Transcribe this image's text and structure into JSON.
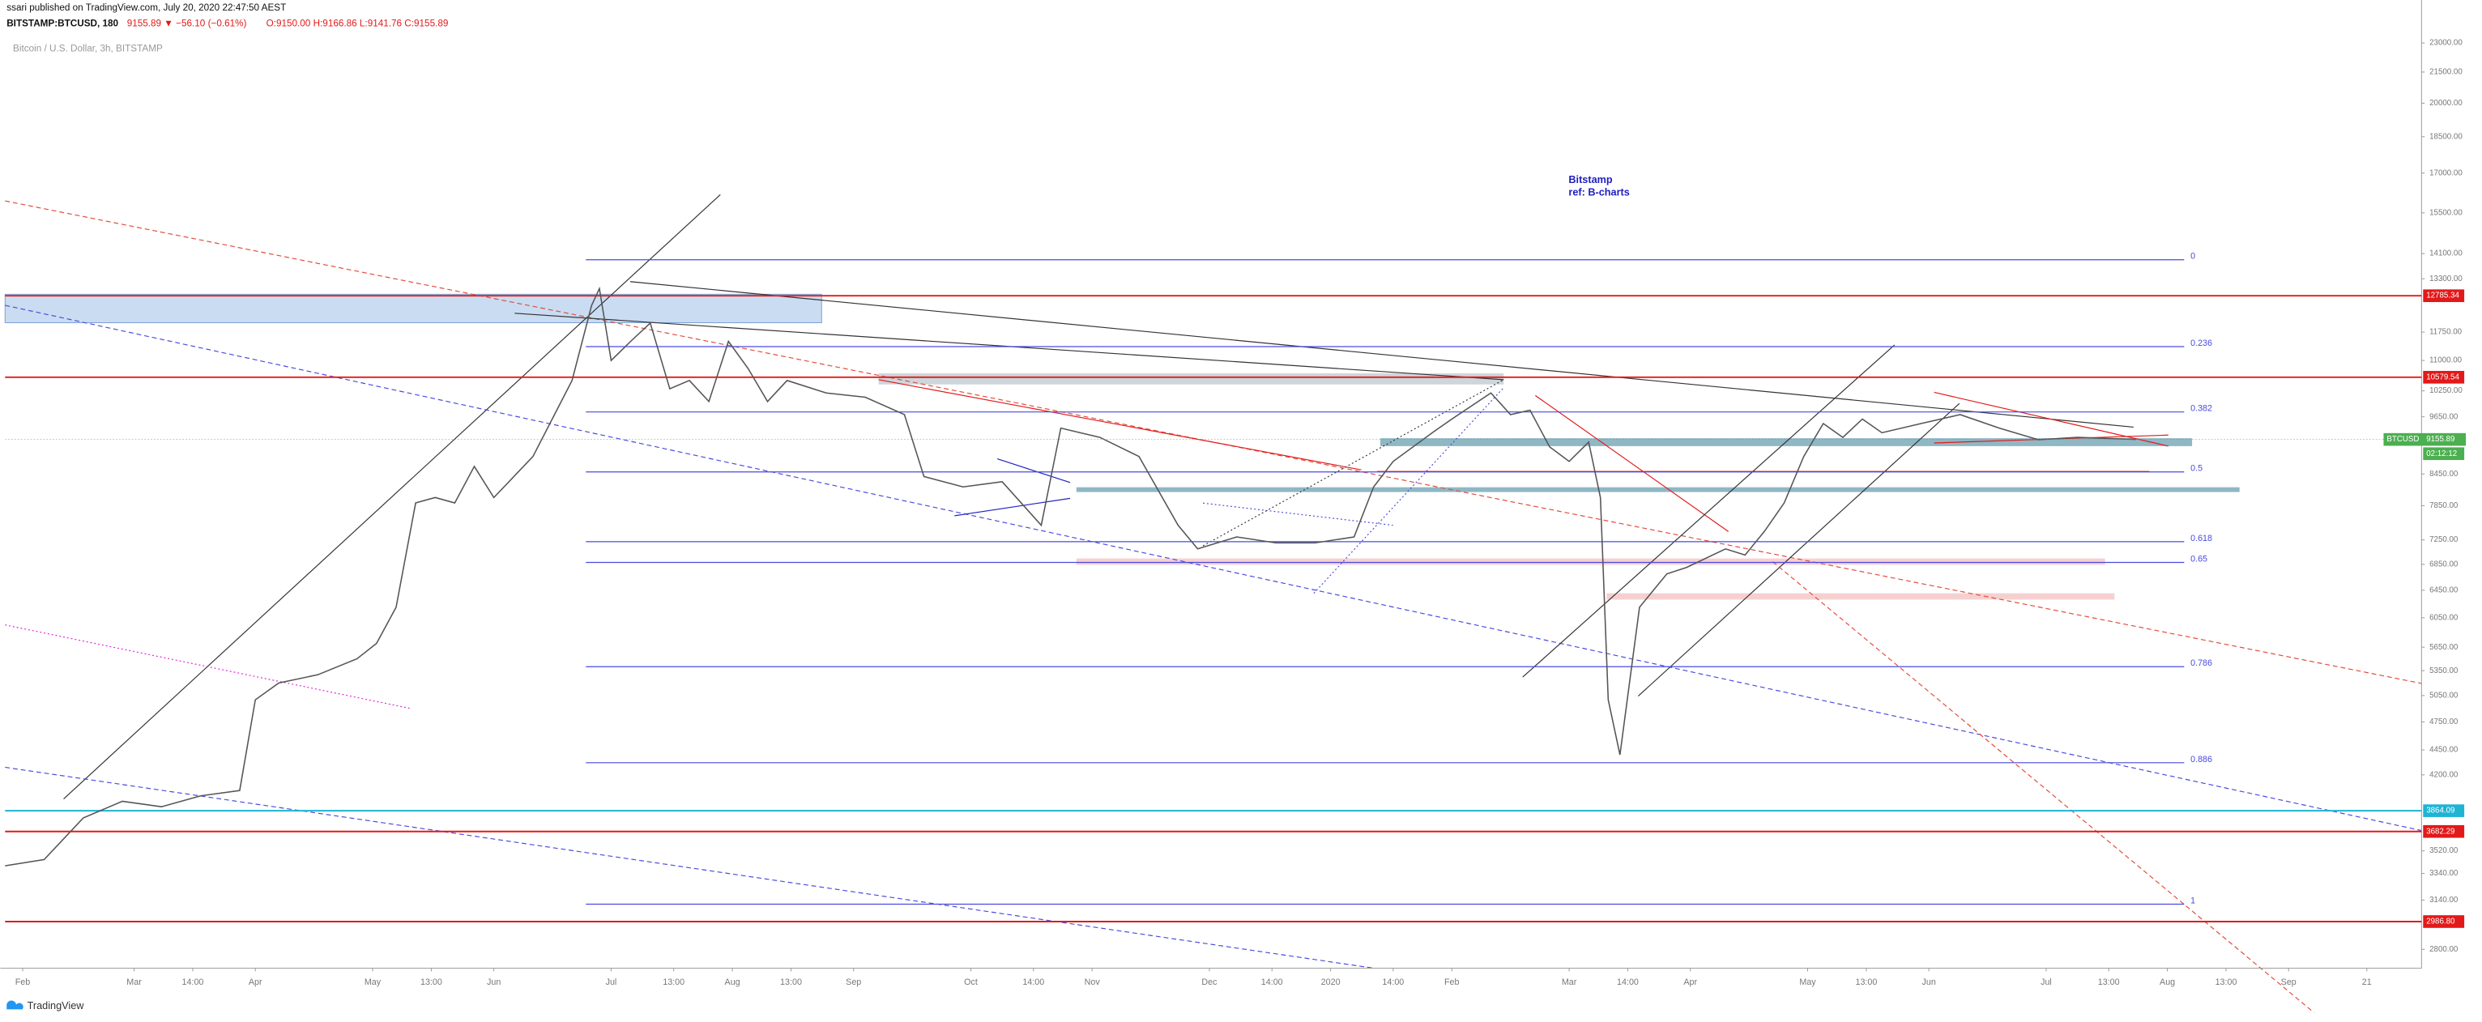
{
  "header": {
    "publisher": "ssari published on TradingView.com, July 20, 2020 22:47:50 AEST",
    "symbol": "BITSTAMP:BTCUSD, 180",
    "change": "9155.89 ▼ −56.10 (−0.61%)",
    "ohlc": "O:9150.00 H:9166.86 L:9141.76 C:9155.89"
  },
  "footer": {
    "brand": "TradingView"
  },
  "chart_data": {
    "type": "line",
    "log_scale": true,
    "grid": false,
    "title": "Bitcoin / U.S. Dollar, 3h, BITSTAMP",
    "annotations": [
      "Bitstamp",
      "ref: B-charts"
    ],
    "xlim": [
      0,
      618
    ],
    "ylim": [
      2680,
      24500
    ],
    "xticks": [
      {
        "value": 4.5,
        "label": "Feb"
      },
      {
        "value": 33,
        "label": "Mar"
      },
      {
        "value": 48,
        "label": "14:00"
      },
      {
        "value": 64,
        "label": "Apr"
      },
      {
        "value": 94,
        "label": "May"
      },
      {
        "value": 109,
        "label": "13:00"
      },
      {
        "value": 125,
        "label": "Jun"
      },
      {
        "value": 155,
        "label": "Jul"
      },
      {
        "value": 171,
        "label": "13:00"
      },
      {
        "value": 186,
        "label": "Aug"
      },
      {
        "value": 201,
        "label": "13:00"
      },
      {
        "value": 217,
        "label": "Sep"
      },
      {
        "value": 247,
        "label": "Oct"
      },
      {
        "value": 263,
        "label": "14:00"
      },
      {
        "value": 278,
        "label": "Nov"
      },
      {
        "value": 308,
        "label": "Dec"
      },
      {
        "value": 324,
        "label": "14:00"
      },
      {
        "value": 339,
        "label": "2020"
      },
      {
        "value": 355,
        "label": "14:00"
      },
      {
        "value": 370,
        "label": "Feb"
      },
      {
        "value": 400,
        "label": "Mar"
      },
      {
        "value": 415,
        "label": "14:00"
      },
      {
        "value": 431,
        "label": "Apr"
      },
      {
        "value": 461,
        "label": "May"
      },
      {
        "value": 476,
        "label": "13:00"
      },
      {
        "value": 492,
        "label": "Jun"
      },
      {
        "value": 522,
        "label": "Jul"
      },
      {
        "value": 538,
        "label": "13:00"
      },
      {
        "value": 553,
        "label": "Aug"
      },
      {
        "value": 568,
        "label": "13:00"
      },
      {
        "value": 584,
        "label": "Sep"
      },
      {
        "value": 604,
        "label": "21"
      }
    ],
    "yticks": [
      {
        "value": 23000,
        "label": "23000.00"
      },
      {
        "value": 21500,
        "label": "21500.00"
      },
      {
        "value": 20000,
        "label": "20000.00"
      },
      {
        "value": 18500,
        "label": "18500.00"
      },
      {
        "value": 17000,
        "label": "17000.00"
      },
      {
        "value": 15500,
        "label": "15500.00"
      },
      {
        "value": 14100,
        "label": "14100.00"
      },
      {
        "value": 13300,
        "label": "13300.00"
      },
      {
        "value": 11750,
        "label": "11750.00"
      },
      {
        "value": 11000,
        "label": "11000.00"
      },
      {
        "value": 10250,
        "label": "10250.00"
      },
      {
        "value": 9650,
        "label": "9650.00"
      },
      {
        "value": 8450,
        "label": "8450.00"
      },
      {
        "value": 7850,
        "label": "7850.00"
      },
      {
        "value": 7250,
        "label": "7250.00"
      },
      {
        "value": 6850,
        "label": "6850.00"
      },
      {
        "value": 6450,
        "label": "6450.00"
      },
      {
        "value": 6050,
        "label": "6050.00"
      },
      {
        "value": 5650,
        "label": "5650.00"
      },
      {
        "value": 5350,
        "label": "5350.00"
      },
      {
        "value": 5050,
        "label": "5050.00"
      },
      {
        "value": 4750,
        "label": "4750.00"
      },
      {
        "value": 4450,
        "label": "4450.00"
      },
      {
        "value": 4200,
        "label": "4200.00"
      },
      {
        "value": 3520,
        "label": "3520.00"
      },
      {
        "value": 3340,
        "label": "3340.00"
      },
      {
        "value": 3140,
        "label": "3140.00"
      },
      {
        "value": 2800,
        "label": "2800.00"
      }
    ],
    "x": [
      0,
      10,
      20,
      30,
      40,
      50,
      60,
      64,
      70,
      80,
      90,
      95,
      100,
      105,
      110,
      115,
      120,
      125,
      135,
      145,
      150,
      152,
      155,
      160,
      165,
      170,
      175,
      180,
      185,
      190,
      195,
      200,
      210,
      220,
      230,
      235,
      245,
      255,
      265,
      270,
      280,
      290,
      300,
      305,
      315,
      325,
      335,
      345,
      350,
      355,
      365,
      370,
      380,
      385,
      390,
      395,
      400,
      405,
      408,
      410,
      413,
      418,
      425,
      430,
      440,
      445,
      450,
      455,
      460,
      465,
      470,
      475,
      480,
      490,
      500,
      510,
      520,
      530,
      545
    ],
    "series": [
      {
        "name": "BTCUSD",
        "color": "#555555",
        "values": [
          3400,
          3450,
          3800,
          3950,
          3900,
          4000,
          4050,
          5000,
          5200,
          5300,
          5500,
          5700,
          6200,
          7900,
          8000,
          7900,
          8600,
          8000,
          8800,
          10500,
          12500,
          13000,
          11000,
          11500,
          12000,
          10300,
          10500,
          10000,
          11500,
          10800,
          10000,
          10500,
          10200,
          10100,
          9700,
          8400,
          8200,
          8300,
          7500,
          9400,
          9200,
          8800,
          7500,
          7100,
          7300,
          7200,
          7200,
          7300,
          8200,
          8700,
          9300,
          9600,
          10200,
          9700,
          9800,
          9000,
          8700,
          9100,
          8000,
          5000,
          4400,
          6200,
          6700,
          6800,
          7100,
          7000,
          7400,
          7900,
          8800,
          9500,
          9200,
          9600,
          9300,
          9500,
          9700,
          9400,
          9150,
          9200,
          9155.89
        ]
      }
    ],
    "levels": [
      {
        "value": 12785.34,
        "label": "12785.34",
        "color": "#e31919"
      },
      {
        "value": 10579.54,
        "label": "10579.54",
        "color": "#e31919"
      },
      {
        "value": 3864.09,
        "label": "3864.09",
        "color": "#1eb4d4"
      },
      {
        "value": 3682.29,
        "label": "3682.29",
        "color": "#e31919"
      },
      {
        "value": 2986.8,
        "label": "2986.80",
        "color": "#e31919"
      }
    ],
    "fib": {
      "color": "#4a4adf",
      "levels": [
        {
          "value": 13900,
          "label": "0"
        },
        {
          "value": 11360,
          "label": "0.236"
        },
        {
          "value": 9760,
          "label": "0.382"
        },
        {
          "value": 8490,
          "label": "0.5"
        },
        {
          "value": 7220,
          "label": "0.618"
        },
        {
          "value": 6880,
          "label": "0.65"
        },
        {
          "value": 5400,
          "label": "0.786"
        },
        {
          "value": 4320,
          "label": "0.886"
        },
        {
          "value": 3110,
          "label": "1"
        }
      ]
    },
    "last": {
      "name": "BTCUSD",
      "value": 9155.89,
      "countdown": "02:12:12",
      "color": "#4caf50"
    }
  }
}
